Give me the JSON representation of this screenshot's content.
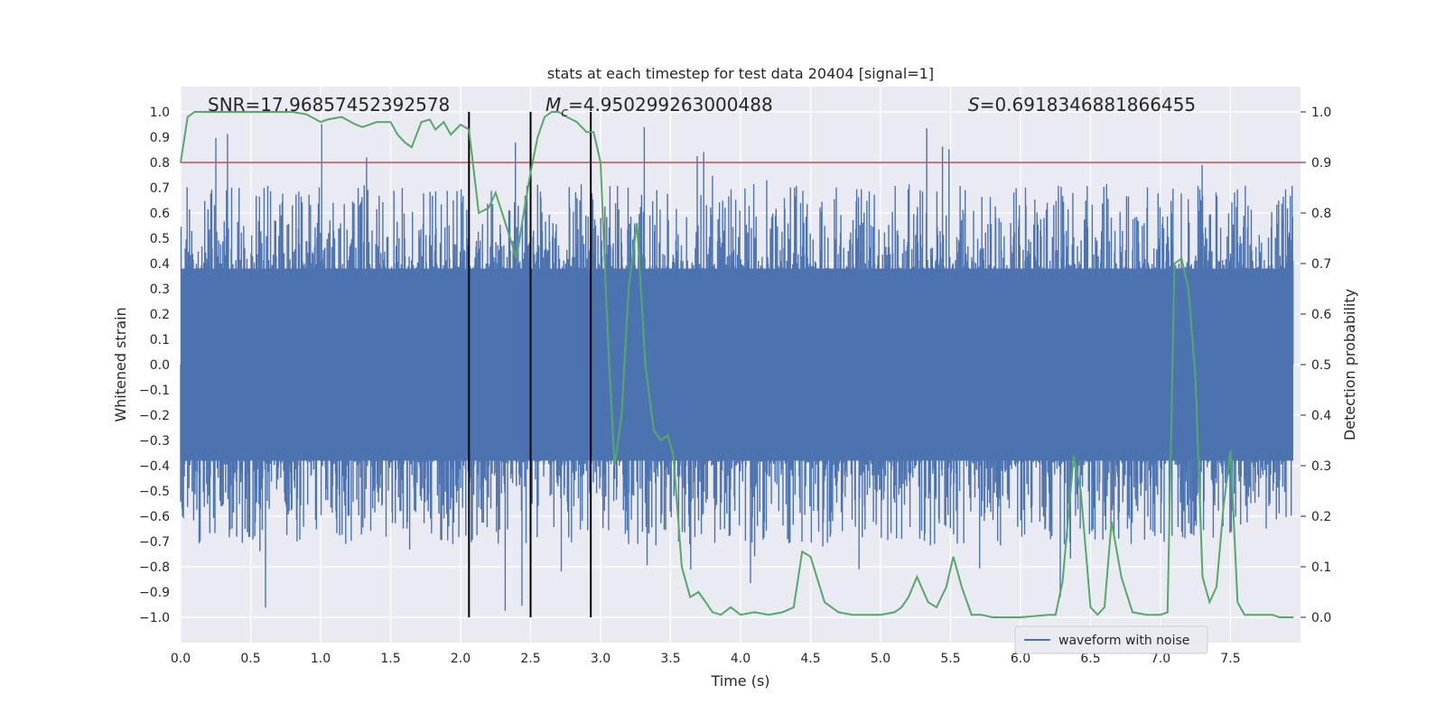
{
  "chart_data": {
    "type": "line",
    "title": "stats at each timestep for test data 20404 [signal=1]",
    "xlabel": "Time (s)",
    "ylabel": "Whitened strain",
    "y2label": "Detection probability",
    "xlim": [
      0.0,
      8.0
    ],
    "ylim": [
      -1.1,
      1.1
    ],
    "y2lim": [
      -0.05,
      1.05
    ],
    "xticks": [
      "0.0",
      "0.5",
      "1.0",
      "1.5",
      "2.0",
      "2.5",
      "3.0",
      "3.5",
      "4.0",
      "4.5",
      "5.0",
      "5.5",
      "6.0",
      "6.5",
      "7.0",
      "7.5"
    ],
    "xtick_values": [
      0.0,
      0.5,
      1.0,
      1.5,
      2.0,
      2.5,
      3.0,
      3.5,
      4.0,
      4.5,
      5.0,
      5.5,
      6.0,
      6.5,
      7.0,
      7.5
    ],
    "yticks": [
      "1.0",
      "0.9",
      "0.8",
      "0.7",
      "0.6",
      "0.5",
      "0.4",
      "0.3",
      "0.2",
      "0.1",
      "0.0",
      "−0.1",
      "−0.2",
      "−0.3",
      "−0.4",
      "−0.5",
      "−0.6",
      "−0.7",
      "−0.8",
      "−0.9",
      "−1.0"
    ],
    "ytick_values": [
      1.0,
      0.9,
      0.8,
      0.7,
      0.6,
      0.5,
      0.4,
      0.3,
      0.2,
      0.1,
      0.0,
      -0.1,
      -0.2,
      -0.3,
      -0.4,
      -0.5,
      -0.6,
      -0.7,
      -0.8,
      -0.9,
      -1.0
    ],
    "y2ticks": [
      "1.0",
      "0.9",
      "0.8",
      "0.7",
      "0.6",
      "0.5",
      "0.4",
      "0.3",
      "0.2",
      "0.1",
      "0.0"
    ],
    "y2tick_values": [
      1.0,
      0.9,
      0.8,
      0.7,
      0.6,
      0.5,
      0.4,
      0.3,
      0.2,
      0.1,
      0.0
    ],
    "annotations": {
      "snr": "SNR=17.96857452392578",
      "mc_symbol": "M",
      "mc_sub": "c",
      "mc_value": "=4.950299263000488",
      "s_symbol": "S",
      "s_value": "=0.6918346881866455"
    },
    "threshold": {
      "value": 0.9,
      "axis": "y2",
      "color": "#c44e52"
    },
    "vertical_markers": [
      2.06,
      2.5,
      2.93
    ],
    "legend": {
      "entries": [
        "waveform with noise"
      ],
      "placement": "lower-right"
    },
    "series": [
      {
        "name": "waveform with noise",
        "axis": "y",
        "color": "#4c72b0",
        "kind": "noise",
        "core_amplitude": 0.38,
        "typical_peak": 0.62,
        "max_abs": 0.98,
        "samples": 2400,
        "seed": 20404
      },
      {
        "name": "detection probability",
        "axis": "y2",
        "color": "#55a868",
        "x": [
          0.0,
          0.05,
          0.1,
          0.2,
          0.4,
          0.6,
          0.8,
          0.9,
          1.0,
          1.05,
          1.15,
          1.25,
          1.3,
          1.4,
          1.5,
          1.55,
          1.6,
          1.65,
          1.72,
          1.78,
          1.82,
          1.88,
          1.93,
          2.0,
          2.06,
          2.13,
          2.2,
          2.25,
          2.32,
          2.4,
          2.45,
          2.5,
          2.55,
          2.6,
          2.65,
          2.7,
          2.76,
          2.83,
          2.9,
          2.95,
          3.0,
          3.03,
          3.06,
          3.1,
          3.15,
          3.2,
          3.26,
          3.32,
          3.38,
          3.43,
          3.48,
          3.52,
          3.58,
          3.64,
          3.7,
          3.75,
          3.8,
          3.86,
          3.93,
          4.0,
          4.1,
          4.2,
          4.3,
          4.38,
          4.44,
          4.5,
          4.6,
          4.7,
          4.8,
          5.0,
          5.1,
          5.15,
          5.2,
          5.26,
          5.34,
          5.4,
          5.47,
          5.52,
          5.58,
          5.65,
          5.72,
          5.8,
          5.9,
          6.0,
          6.2,
          6.25,
          6.3,
          6.38,
          6.43,
          6.5,
          6.55,
          6.6,
          6.65,
          6.72,
          6.8,
          6.9,
          7.0,
          7.05,
          7.1,
          7.15,
          7.2,
          7.25,
          7.3,
          7.35,
          7.4,
          7.45,
          7.5,
          7.55,
          7.6,
          7.7,
          7.8,
          7.85,
          7.95
        ],
        "values": [
          0.9,
          0.99,
          1.0,
          1.0,
          1.0,
          1.0,
          1.0,
          0.995,
          0.98,
          0.985,
          0.99,
          0.975,
          0.97,
          0.98,
          0.98,
          0.955,
          0.94,
          0.93,
          0.98,
          0.985,
          0.965,
          0.98,
          0.955,
          0.975,
          0.965,
          0.8,
          0.81,
          0.84,
          0.78,
          0.71,
          0.8,
          0.88,
          0.95,
          0.99,
          1.0,
          1.0,
          0.99,
          0.98,
          0.96,
          0.96,
          0.9,
          0.7,
          0.51,
          0.3,
          0.4,
          0.65,
          0.78,
          0.5,
          0.37,
          0.35,
          0.36,
          0.32,
          0.1,
          0.04,
          0.05,
          0.03,
          0.01,
          0.005,
          0.02,
          0.005,
          0.01,
          0.005,
          0.01,
          0.02,
          0.13,
          0.12,
          0.03,
          0.01,
          0.005,
          0.005,
          0.01,
          0.02,
          0.04,
          0.08,
          0.03,
          0.02,
          0.06,
          0.12,
          0.06,
          0.005,
          0.005,
          0.0,
          0.0,
          0.0,
          0.005,
          0.005,
          0.07,
          0.32,
          0.25,
          0.02,
          0.005,
          0.02,
          0.19,
          0.08,
          0.01,
          0.005,
          0.005,
          0.01,
          0.7,
          0.71,
          0.65,
          0.47,
          0.08,
          0.03,
          0.06,
          0.22,
          0.33,
          0.03,
          0.005,
          0.005,
          0.005,
          0.0,
          0.0
        ]
      }
    ]
  }
}
